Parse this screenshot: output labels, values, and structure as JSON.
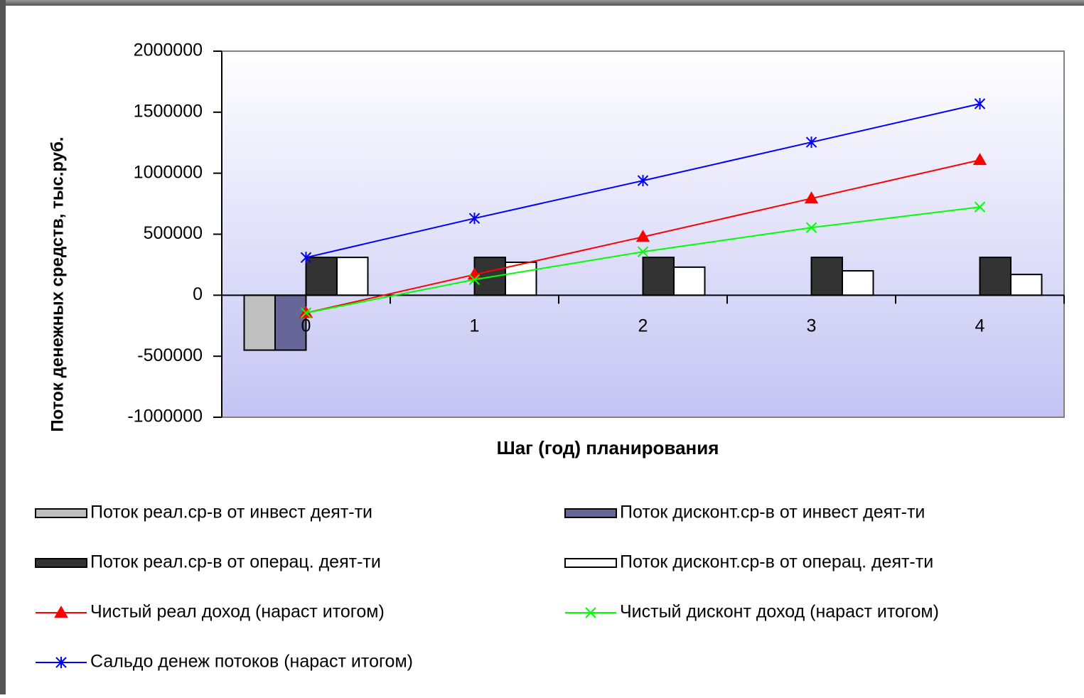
{
  "chart_data": {
    "type": "bar",
    "y_label": "Поток денежных средств, тыс.руб.",
    "x_label": "Шаг (год) планирования",
    "categories": [
      "0",
      "1",
      "2",
      "3",
      "4"
    ],
    "ylim": [
      -1000000,
      2000000
    ],
    "yticks": [
      -1000000,
      -500000,
      0,
      500000,
      1000000,
      1500000,
      2000000
    ],
    "series": [
      {
        "name": "Поток реал.ср-в от инвест деят-ти",
        "kind": "bar",
        "color": "#c0c0c0",
        "values": [
          -450000,
          0,
          0,
          0,
          0
        ]
      },
      {
        "name": "Поток дисконт.ср-в от инвест деят-ти",
        "kind": "bar",
        "color": "#666699",
        "values": [
          -450000,
          0,
          0,
          0,
          0
        ]
      },
      {
        "name": "Поток реал.ср-в от операц. деят-ти",
        "kind": "bar",
        "color": "#333333",
        "values": [
          310000,
          310000,
          310000,
          310000,
          310000
        ]
      },
      {
        "name": "Поток дисконт.ср-в от операц. деят-ти",
        "kind": "bar",
        "color": "#ffffff",
        "values": [
          310000,
          270000,
          230000,
          200000,
          170000
        ]
      },
      {
        "name": "Чистый реал доход (нараст итогом)",
        "kind": "line",
        "marker": "triangle",
        "color": "#ff0000",
        "values": [
          -145000,
          169000,
          478000,
          793000,
          1108000
        ]
      },
      {
        "name": "Чистый дисконт доход (нараст итогом)",
        "kind": "line",
        "marker": "x",
        "color": "#00ff00",
        "values": [
          -145000,
          128000,
          356000,
          554000,
          723000
        ]
      },
      {
        "name": "Сальдо денеж потоков (нараст итогом)",
        "kind": "line",
        "marker": "star",
        "color": "#0000ff",
        "values": [
          309000,
          630000,
          939000,
          1254000,
          1569000
        ]
      }
    ]
  }
}
